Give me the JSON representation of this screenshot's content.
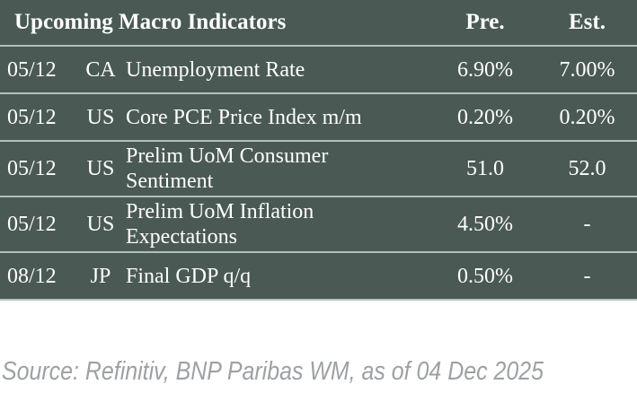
{
  "table": {
    "title": "Upcoming Macro Indicators",
    "columns": {
      "pre": "Pre.",
      "est": "Est."
    },
    "rows": [
      {
        "date": "05/12",
        "country": "CA",
        "indicator": "Unemployment Rate",
        "pre": "6.90%",
        "est": "7.00%"
      },
      {
        "date": "05/12",
        "country": "US",
        "indicator": "Core PCE Price Index m/m",
        "pre": "0.20%",
        "est": "0.20%"
      },
      {
        "date": "05/12",
        "country": "US",
        "indicator": "Prelim UoM Consumer Sentiment",
        "pre": "51.0",
        "est": "52.0"
      },
      {
        "date": "05/12",
        "country": "US",
        "indicator": "Prelim UoM Inflation Expectations",
        "pre": "4.50%",
        "est": "-"
      },
      {
        "date": "08/12",
        "country": "JP",
        "indicator": "Final GDP q/q",
        "pre": "0.50%",
        "est": "-"
      }
    ]
  },
  "source": "Source: Refinitiv, BNP Paribas WM, as of 04 Dec 2025",
  "colors": {
    "table_bg": "#4a5953",
    "divider": "#b2c1b8",
    "text": "#ffffff",
    "source_text": "#9da1a4"
  }
}
